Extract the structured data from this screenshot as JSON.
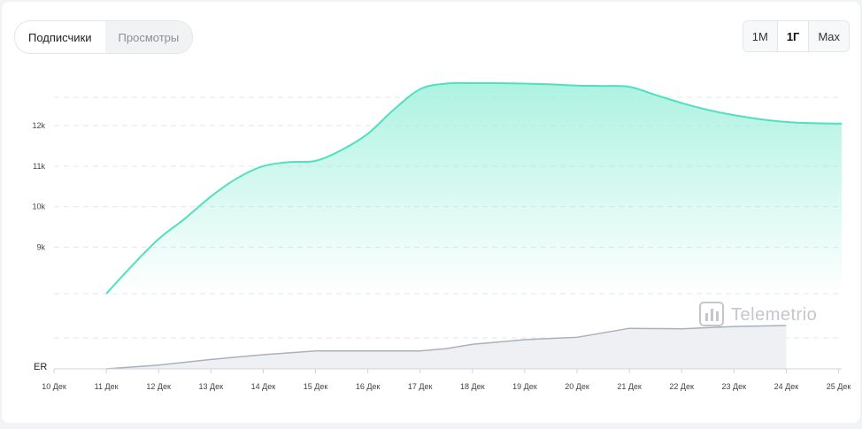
{
  "tabs": [
    {
      "label": "Подписчики",
      "active": true
    },
    {
      "label": "Просмотры",
      "active": false
    }
  ],
  "periods": [
    {
      "label": "1M",
      "active": false
    },
    {
      "label": "1Г",
      "active": true
    },
    {
      "label": "Max",
      "active": false
    }
  ],
  "watermark": "Telemetrio",
  "colors": {
    "subscribers_line": "#4fe0c0",
    "subscribers_fill": "#9ff0dc",
    "er_line": "#a9b1bd",
    "er_fill": "#eef0f3"
  },
  "chart_data": [
    {
      "type": "area",
      "categories": [
        "10 Дек",
        "11 Дек",
        "12 Дек",
        "13 Дек",
        "14 Дек",
        "15 Дек",
        "16 Дек",
        "17 Дек",
        "18 Дек",
        "19 Дек",
        "20 Дек",
        "21 Дек",
        "22 Дек",
        "23 Дек",
        "24 Дек",
        "25 Дек"
      ],
      "yticks": [
        9000,
        10000,
        11000,
        12000
      ],
      "ytick_labels": [
        "9k",
        "10k",
        "11k",
        "12k"
      ],
      "ylim": [
        8000,
        13000
      ],
      "grid": true,
      "series": [
        {
          "x": [
            11,
            11.5,
            12,
            12.5,
            13,
            13.5,
            14,
            14.5,
            15,
            15.5,
            16,
            16.5,
            17,
            17.5,
            18,
            18.5,
            19,
            19.5,
            20,
            20.5,
            21,
            21.5,
            22,
            22.5,
            23,
            23.5,
            24,
            24.5,
            25,
            25.5
          ],
          "values": [
            7850,
            8550,
            9200,
            9700,
            10250,
            10700,
            11000,
            11100,
            11130,
            11400,
            11800,
            12400,
            12900,
            13040,
            13050,
            13050,
            13040,
            13020,
            12990,
            12980,
            12960,
            12760,
            12560,
            12390,
            12260,
            12160,
            12090,
            12060,
            12050,
            12050
          ]
        }
      ]
    },
    {
      "type": "area",
      "ylabel": "ER",
      "x": [
        11,
        12,
        13,
        14,
        15,
        16,
        17,
        17.5,
        18,
        19,
        20,
        21,
        22,
        23,
        24
      ],
      "values": [
        0,
        0.08,
        0.2,
        0.3,
        0.38,
        0.38,
        0.38,
        0.43,
        0.52,
        0.62,
        0.67,
        0.86,
        0.85,
        0.9,
        0.92
      ],
      "ylim": [
        0,
        1
      ]
    }
  ]
}
